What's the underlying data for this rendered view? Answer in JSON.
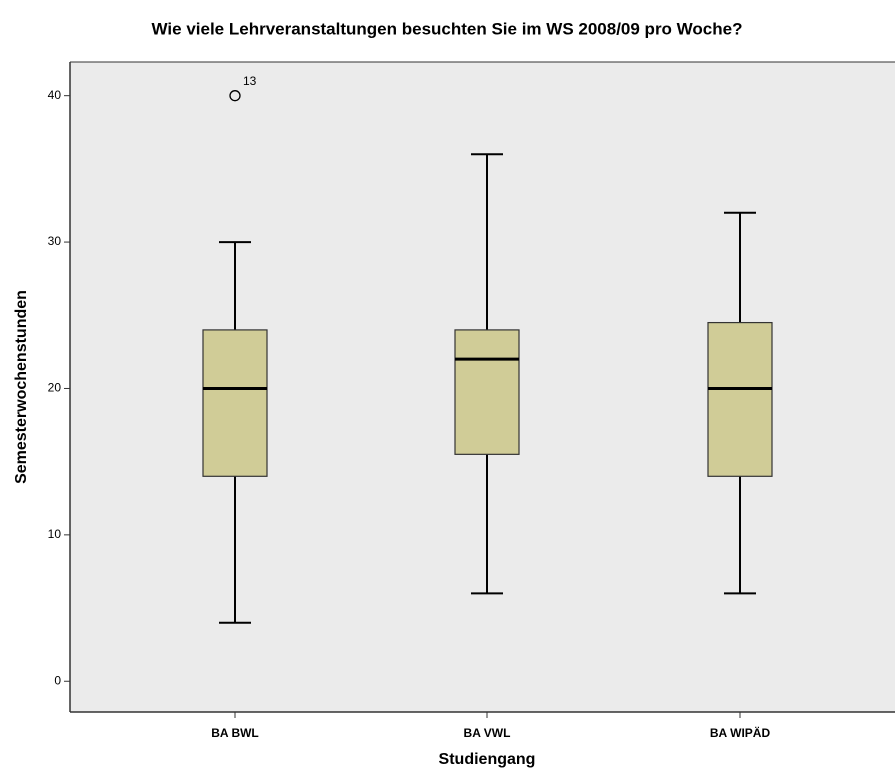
{
  "chart_data": {
    "type": "box",
    "title": "Wie viele Lehrveranstaltungen besuchten Sie im WS 2008/09 pro Woche?",
    "x_label": "Studiengang",
    "y_label": "Semesterwochenstunden",
    "categories": [
      "BA BWL",
      "BA VWL",
      "BA WIPÄD"
    ],
    "boxes": [
      {
        "min": 4,
        "q1": 14,
        "median": 20,
        "q3": 24,
        "max": 30,
        "outliers": [
          {
            "value": 40,
            "label": "13"
          }
        ]
      },
      {
        "min": 6,
        "q1": 15.5,
        "median": 22,
        "q3": 24,
        "max": 36,
        "outliers": []
      },
      {
        "min": 6,
        "q1": 14,
        "median": 20,
        "q3": 24.5,
        "max": 32,
        "outliers": []
      }
    ],
    "color": "#d0cc97",
    "background": "#ebebeb",
    "ylim": [
      -2.1,
      42.3
    ],
    "yticks": [
      0,
      10,
      20,
      30,
      40
    ]
  }
}
